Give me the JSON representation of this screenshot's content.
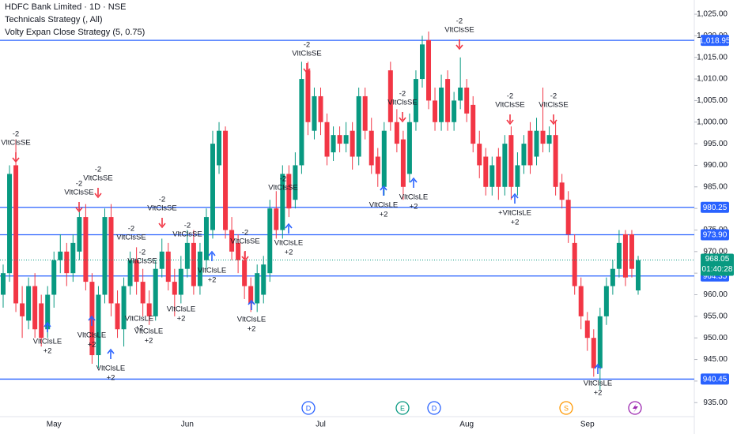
{
  "chart_data": {
    "type": "candlestick",
    "title": "HDFC Bank Limited · 1D · NSE",
    "indicators": [
      "Technicals Strategy (, All)",
      "Volty Expan Close Strategy (5, 0.75)"
    ],
    "categories": [
      null,
      null,
      null,
      null,
      null,
      null,
      null,
      null,
      "May",
      null,
      null,
      null,
      null,
      null,
      null,
      null,
      null,
      null,
      null,
      null,
      null,
      null,
      null,
      null,
      null,
      null,
      null,
      null,
      null,
      "Jun",
      null,
      null,
      null,
      null,
      null,
      null,
      null,
      null,
      null,
      null,
      null,
      null,
      null,
      null,
      null,
      null,
      null,
      null,
      null,
      null,
      "Jul",
      null,
      null,
      null,
      null,
      null,
      null,
      null,
      null,
      null,
      null,
      null,
      null,
      null,
      null,
      null,
      null,
      null,
      null,
      null,
      null,
      null,
      null,
      "Aug",
      null,
      null,
      null,
      null,
      null,
      null,
      null,
      null,
      null,
      null,
      null,
      null,
      null,
      null,
      null,
      null,
      null,
      null,
      "Sep",
      null,
      null,
      null,
      null,
      null,
      null,
      null,
      null
    ],
    "open": [
      960,
      965,
      990,
      958,
      954,
      962,
      958,
      952,
      960,
      968,
      970,
      965,
      970,
      978,
      963,
      946,
      960,
      978,
      958,
      952,
      962,
      968,
      963,
      958,
      955,
      966,
      970,
      963,
      960,
      966,
      972,
      962,
      968,
      975,
      990,
      998,
      975,
      972,
      968,
      962,
      958,
      960,
      965,
      980,
      975,
      988,
      982,
      990,
      1012,
      998,
      1006,
      1000,
      993,
      997,
      995,
      998,
      992,
      1006,
      998,
      992,
      985,
      1012,
      1000,
      996,
      988,
      1000,
      1010,
      1019,
      1005,
      1000,
      1010,
      1000,
      1005,
      1008,
      1004,
      995,
      992,
      985,
      992,
      985,
      997,
      985,
      990,
      998,
      992,
      998,
      995,
      997,
      986,
      982,
      972,
      962,
      954,
      950,
      943,
      955,
      962,
      966,
      974,
      974,
      961
    ],
    "high": [
      967,
      990,
      996,
      962,
      964,
      965,
      960,
      962,
      970,
      974,
      972,
      974,
      980,
      981,
      965,
      962,
      980,
      981,
      961,
      964,
      970,
      971,
      966,
      961,
      968,
      973,
      972,
      966,
      969,
      975,
      975,
      972,
      980,
      998,
      1000,
      999,
      978,
      974,
      970,
      964,
      967,
      969,
      982,
      984,
      990,
      990,
      993,
      1014,
      1014,
      1008,
      1008,
      1002,
      999,
      999,
      1000,
      1000,
      1008,
      1008,
      1001,
      994,
      1000,
      1014,
      1003,
      998,
      1002,
      1012,
      1020,
      1021,
      1008,
      1011,
      1012,
      1007,
      1015,
      1010,
      1006,
      998,
      994,
      992,
      994,
      997,
      999,
      993,
      997,
      1000,
      1001,
      1008,
      999,
      1000,
      988,
      984,
      974,
      964,
      956,
      952,
      957,
      964,
      968,
      975,
      975,
      975,
      969
    ],
    "low": [
      957,
      963,
      956,
      950,
      952,
      950,
      948,
      950,
      957,
      965,
      962,
      963,
      968,
      961,
      944,
      943,
      958,
      955,
      950,
      948,
      960,
      960,
      955,
      953,
      954,
      964,
      961,
      955,
      958,
      964,
      960,
      960,
      966,
      973,
      988,
      973,
      968,
      965,
      959,
      956,
      956,
      958,
      963,
      973,
      973,
      978,
      980,
      988,
      997,
      996,
      997,
      990,
      991,
      993,
      993,
      989,
      990,
      996,
      988,
      985,
      983,
      998,
      993,
      982,
      986,
      998,
      1008,
      1003,
      998,
      998,
      998,
      998,
      1003,
      1000,
      993,
      987,
      983,
      983,
      982,
      983,
      982,
      983,
      988,
      988,
      990,
      993,
      993,
      983,
      980,
      972,
      960,
      952,
      947,
      941,
      938,
      953,
      960,
      964,
      962,
      964,
      960
    ],
    "close": [
      965,
      988,
      958,
      955,
      962,
      952,
      950,
      960,
      968,
      970,
      965,
      972,
      978,
      963,
      946,
      960,
      978,
      958,
      952,
      962,
      968,
      963,
      958,
      955,
      966,
      970,
      963,
      960,
      966,
      972,
      962,
      970,
      978,
      995,
      998,
      975,
      970,
      968,
      962,
      958,
      965,
      967,
      980,
      975,
      988,
      980,
      990,
      1010,
      1000,
      1006,
      1000,
      992,
      997,
      995,
      997,
      992,
      1006,
      998,
      990,
      988,
      998,
      1000,
      995,
      985,
      1000,
      1010,
      1018,
      1005,
      1000,
      1008,
      1000,
      1005,
      1008,
      1002,
      995,
      990,
      985,
      990,
      985,
      995,
      985,
      990,
      995,
      990,
      998,
      995,
      997,
      985,
      982,
      974,
      962,
      955,
      950,
      943,
      955,
      962,
      966,
      972,
      964,
      966,
      968
    ],
    "up_color": "#089981",
    "down_color": "#f23645",
    "ylim": [
      932.3,
      1028.3
    ],
    "yticks": [
      {
        "value": 935,
        "label": "935.00"
      },
      {
        "value": 940,
        "label": "940.00"
      },
      {
        "value": 945,
        "label": "945.00"
      },
      {
        "value": 950,
        "label": "950.00"
      },
      {
        "value": 955,
        "label": "955.00"
      },
      {
        "value": 960,
        "label": "960.00"
      },
      {
        "value": 965,
        "label": "965.00"
      },
      {
        "value": 970,
        "label": "970.00"
      },
      {
        "value": 975,
        "label": "975.00"
      },
      {
        "value": 980,
        "label": "980.00"
      },
      {
        "value": 985,
        "label": "985.00"
      },
      {
        "value": 990,
        "label": "990.00"
      },
      {
        "value": 995,
        "label": "995.00"
      },
      {
        "value": 1000,
        "label": "1,000.00"
      },
      {
        "value": 1005,
        "label": "1,005.00"
      },
      {
        "value": 1010,
        "label": "1,010.00"
      },
      {
        "value": 1015,
        "label": "1,015.00"
      },
      {
        "value": 1020,
        "label": "1,020.00"
      },
      {
        "value": 1025,
        "label": "1,025.00"
      }
    ],
    "grid": false,
    "levels": [
      {
        "value": 1018.95,
        "label": "1,018.95"
      },
      {
        "value": 980.25,
        "label": "980.25"
      },
      {
        "value": 973.9,
        "label": "973.90"
      },
      {
        "value": 964.35,
        "label": "964.35"
      },
      {
        "value": 940.45,
        "label": "940.45"
      }
    ],
    "level_color": "#2962ff",
    "last_price": {
      "value": 968.05,
      "label": "968.05"
    },
    "countdown": "01:40:28",
    "short_signals": [
      {
        "qty": "-2",
        "label": "VltClsSE"
      },
      {
        "qty": "-2",
        "label": "VltClsSE"
      },
      {
        "qty": "-2",
        "label": "VltClsSE"
      },
      {
        "qty": "-2",
        "label": "VltClsSE"
      },
      {
        "qty": "-2",
        "label": "VltClsSE"
      },
      {
        "qty": "-2",
        "label": "VltClsSE"
      },
      {
        "qty": "-2",
        "label": "VltClsSE"
      },
      {
        "qty": "-2",
        "label": "VltClsSE"
      },
      {
        "qty": "-2",
        "label": "VltClsSE"
      },
      {
        "qty": "-2",
        "label": "VltClsSE"
      },
      {
        "qty": "-2",
        "label": "VltClsSE"
      },
      {
        "qty": "-2",
        "label": "VltClsSE"
      },
      {
        "qty": "-2",
        "label": "VltClsSE"
      },
      {
        "qty": "-2",
        "label": "VltClsSE"
      }
    ],
    "long_signals": [
      {
        "label": "VltClsLE",
        "qty": "+2"
      },
      {
        "label": "VltClsLE",
        "qty": "+2"
      },
      {
        "label": "VltClsLE",
        "qty": "+2"
      },
      {
        "label": "VltClsLE",
        "qty": "+2"
      },
      {
        "label": "VltClsLE",
        "qty": "+2"
      },
      {
        "label": "VltClsLE",
        "qty": "+2"
      },
      {
        "label": "VltClsLE",
        "qty": "+2"
      },
      {
        "label": "VltClsLE",
        "qty": "+2"
      },
      {
        "label": "VltClsLE",
        "qty": "+2"
      },
      {
        "label": "VltClsLE",
        "qty": "+2"
      },
      {
        "label": "VltClsLE",
        "qty": "+2"
      },
      {
        "label": "+VltClsLE",
        "qty": "+2"
      },
      {
        "label": "VltClsLE",
        "qty": "+2"
      }
    ],
    "events": [
      "D",
      "E",
      "D",
      "S"
    ]
  }
}
